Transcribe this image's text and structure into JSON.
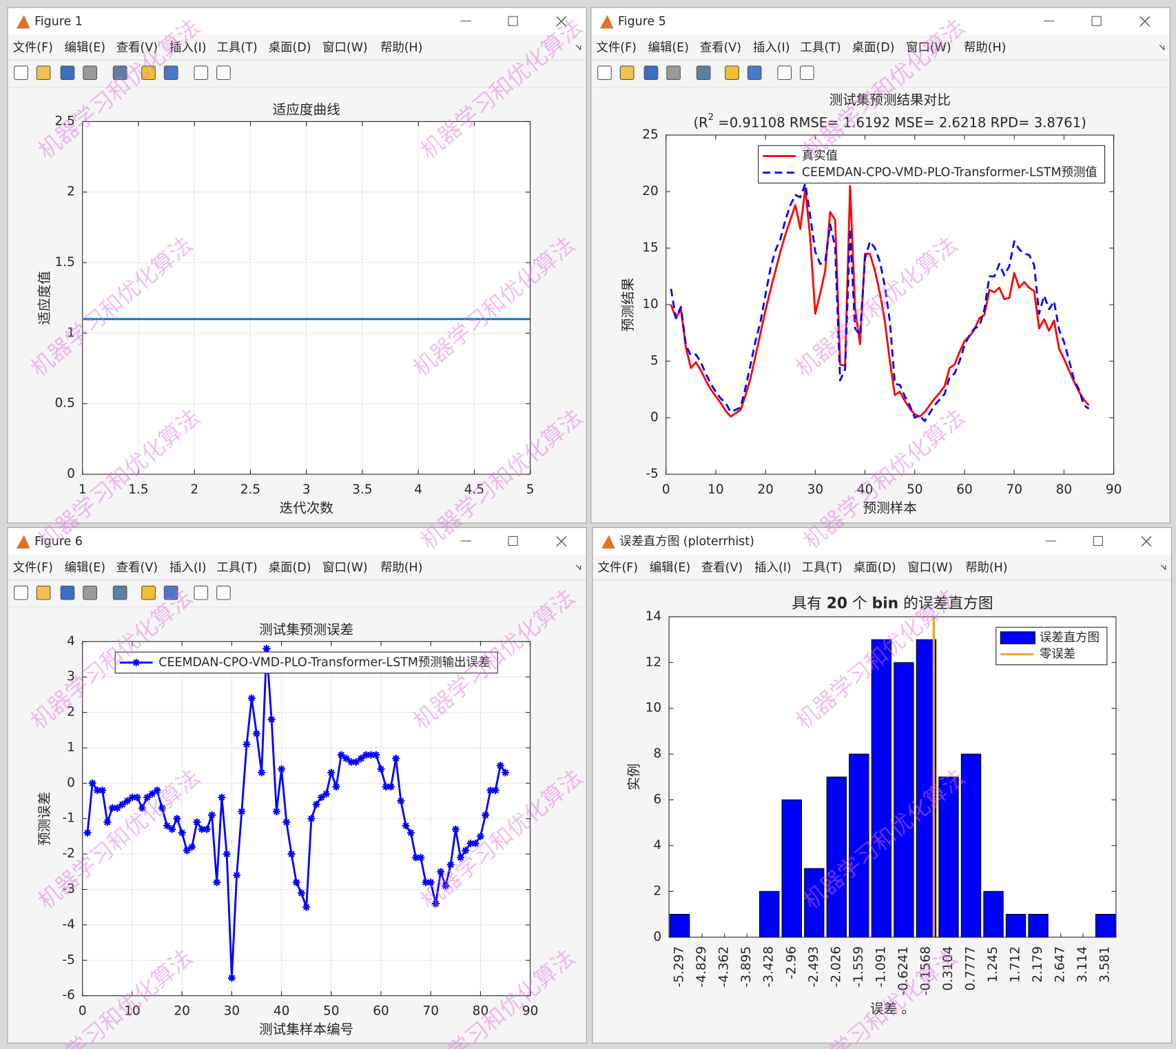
{
  "windows": [
    {
      "title": "Figure 1"
    },
    {
      "title": "Figure 5"
    },
    {
      "title": "Figure 6"
    },
    {
      "title": "误差直方图 (ploterrhist)"
    }
  ],
  "menu": [
    "文件(F)",
    "编辑(E)",
    "查看(V)",
    "插入(I)",
    "工具(T)",
    "桌面(D)",
    "窗口(W)",
    "帮助(H)"
  ],
  "watermark": "机器学习和优化算法",
  "chart_data": [
    {
      "type": "line",
      "title": "适应度曲线",
      "xlabel": "迭代次数",
      "ylabel": "适应度值",
      "x": [
        1,
        2,
        3,
        4,
        5
      ],
      "series": [
        {
          "color": "#0072bd",
          "values": [
            1.1,
            1.1,
            1.1,
            1.1,
            1.1
          ]
        }
      ],
      "xlim": [
        1,
        5
      ],
      "xticks": [
        1,
        1.5,
        2,
        2.5,
        3,
        3.5,
        4,
        4.5,
        5
      ],
      "ylim": [
        0,
        2.5
      ],
      "yticks": [
        0,
        0.5,
        1,
        1.5,
        2,
        2.5
      ],
      "grid": true
    },
    {
      "type": "line",
      "title": "测试集预测结果对比",
      "subtitle": [
        "(R",
        "2",
        " =0.91108 RMSE= 1.6192 MSE= 2.6218 RPD= 3.8761)"
      ],
      "xlabel": "预测样本",
      "ylabel": "预测结果",
      "x": [
        1,
        2,
        3,
        4,
        5,
        6,
        7,
        8,
        9,
        10,
        11,
        12,
        13,
        14,
        15,
        16,
        17,
        18,
        19,
        20,
        21,
        22,
        23,
        24,
        25,
        26,
        27,
        28,
        29,
        30,
        31,
        32,
        33,
        34,
        35,
        36,
        37,
        38,
        39,
        40,
        41,
        42,
        43,
        44,
        45,
        46,
        47,
        48,
        49,
        50,
        51,
        52,
        53,
        54,
        55,
        56,
        57,
        58,
        59,
        60,
        61,
        62,
        63,
        64,
        65,
        66,
        67,
        68,
        69,
        70,
        71,
        72,
        73,
        74,
        75,
        76,
        77,
        78,
        79,
        80,
        81,
        82,
        83,
        84,
        85
      ],
      "series": [
        {
          "name": "真实值",
          "color": "#ff0000",
          "style": "solid",
          "values": [
            10,
            8.8,
            9.6,
            6.2,
            4.4,
            4.9,
            4.2,
            3.3,
            2.5,
            1.9,
            1.3,
            0.6,
            0.1,
            0.4,
            0.7,
            2,
            3.5,
            5.5,
            7.5,
            9.5,
            11.3,
            13,
            14.7,
            16.2,
            17.5,
            18.8,
            16.7,
            20.3,
            15.8,
            9.2,
            11,
            13,
            18.2,
            17.5,
            4.7,
            4.6,
            20.5,
            9.7,
            6.5,
            14.5,
            14.5,
            13,
            11,
            8.5,
            5,
            2,
            2.3,
            1.5,
            0.8,
            0.3,
            0.1,
            0.5,
            1.1,
            1.7,
            2.2,
            2.8,
            4.4,
            4.7,
            5.8,
            6.8,
            7.2,
            7.8,
            8.8,
            9.1,
            11.3,
            11.1,
            11.5,
            10.5,
            10.6,
            12.8,
            11.5,
            12,
            11.5,
            11.2,
            7.9,
            8.7,
            7.7,
            8.6,
            6.1,
            5.2,
            4.2,
            3.2,
            2.3,
            1.6,
            1.1
          ]
        },
        {
          "name": "CEEMDAN-CPO-VMD-PLO-Transformer-LSTM预测值",
          "color": "#0000ff",
          "style": "dashed",
          "values": [
            11.4,
            8.8,
            9.8,
            6.4,
            5.5,
            5.6,
            4.9,
            3.9,
            3,
            2.3,
            1.7,
            1.3,
            0.5,
            0.7,
            0.9,
            2.7,
            4.7,
            6.8,
            8.5,
            10.9,
            13.2,
            14.8,
            15.8,
            17.5,
            18.8,
            19.7,
            19.5,
            20.7,
            17.8,
            14.7,
            13.6,
            13.8,
            17.1,
            15.1,
            3.3,
            4.3,
            16.7,
            7.9,
            7.3,
            14.1,
            15.6,
            15,
            13.8,
            11.6,
            8.5,
            3,
            2.9,
            1.9,
            1.1,
            0,
            0.2,
            -0.3,
            0.4,
            1.1,
            1.6,
            2.1,
            3.6,
            3.9,
            5,
            6.4,
            7.3,
            7.9,
            8.1,
            9.6,
            12.5,
            12.5,
            13.6,
            12.6,
            13.4,
            15.6,
            14.9,
            14.5,
            14.4,
            13.5,
            9.2,
            10.8,
            9.6,
            10.3,
            7.8,
            6.7,
            5.1,
            3.4,
            2.5,
            1.1,
            0.8
          ]
        }
      ],
      "xlim": [
        0,
        90
      ],
      "xticks": [
        0,
        10,
        20,
        30,
        40,
        50,
        60,
        70,
        80,
        90
      ],
      "ylim": [
        -5,
        25
      ],
      "yticks": [
        -5,
        0,
        5,
        10,
        15,
        20,
        25
      ],
      "grid": false,
      "legend": "upper right"
    },
    {
      "type": "line",
      "title": "测试集预测误差",
      "xlabel": "测试集样本编号",
      "ylabel": "预测误差",
      "x": [
        1,
        2,
        3,
        4,
        5,
        6,
        7,
        8,
        9,
        10,
        11,
        12,
        13,
        14,
        15,
        16,
        17,
        18,
        19,
        20,
        21,
        22,
        23,
        24,
        25,
        26,
        27,
        28,
        29,
        30,
        31,
        32,
        33,
        34,
        35,
        36,
        37,
        38,
        39,
        40,
        41,
        42,
        43,
        44,
        45,
        46,
        47,
        48,
        49,
        50,
        51,
        52,
        53,
        54,
        55,
        56,
        57,
        58,
        59,
        60,
        61,
        62,
        63,
        64,
        65,
        66,
        67,
        68,
        69,
        70,
        71,
        72,
        73,
        74,
        75,
        76,
        77,
        78,
        79,
        80,
        81,
        82,
        83,
        84,
        85
      ],
      "series": [
        {
          "name": "CEEMDAN-CPO-VMD-PLO-Transformer-LSTM预测输出误差",
          "color": "#0000ff",
          "style": "solid",
          "marker": "asterisk",
          "values": [
            -1.4,
            0,
            -0.2,
            -0.2,
            -1.1,
            -0.7,
            -0.7,
            -0.6,
            -0.5,
            -0.4,
            -0.4,
            -0.7,
            -0.4,
            -0.3,
            -0.2,
            -0.7,
            -1.2,
            -1.3,
            -1,
            -1.4,
            -1.9,
            -1.8,
            -1.1,
            -1.3,
            -1.3,
            -0.9,
            -2.8,
            -0.4,
            -2,
            -5.5,
            -2.6,
            -0.8,
            1.1,
            2.4,
            1.4,
            0.3,
            3.8,
            1.8,
            -0.8,
            0.4,
            -1.1,
            -2,
            -2.8,
            -3.1,
            -3.5,
            -1,
            -0.6,
            -0.4,
            -0.3,
            0.3,
            -0.1,
            0.8,
            0.7,
            0.6,
            0.6,
            0.7,
            0.8,
            0.8,
            0.8,
            0.4,
            -0.1,
            -0.1,
            0.7,
            -0.5,
            -1.2,
            -1.4,
            -2.1,
            -2.1,
            -2.8,
            -2.8,
            -3.4,
            -2.5,
            -2.9,
            -2.3,
            -1.3,
            -2.1,
            -1.9,
            -1.7,
            -1.7,
            -1.5,
            -0.9,
            -0.2,
            -0.2,
            0.5,
            0.3
          ]
        }
      ],
      "xlim": [
        0,
        90
      ],
      "xticks": [
        0,
        10,
        20,
        30,
        40,
        50,
        60,
        70,
        80,
        90
      ],
      "ylim": [
        -6,
        4
      ],
      "yticks": [
        -6,
        -5,
        -4,
        -3,
        -2,
        -1,
        0,
        1,
        2,
        3,
        4
      ],
      "grid": true,
      "legend": "upper center"
    },
    {
      "type": "histogram",
      "title_parts": [
        "具有 ",
        "20",
        " 个 ",
        "bin",
        " 的误差直方图"
      ],
      "xlabel": "误差 。",
      "ylabel": "实例",
      "x": [
        -5.297,
        -4.829,
        -4.362,
        -3.895,
        -3.428,
        -2.96,
        -2.493,
        -2.026,
        -1.559,
        -1.091,
        -0.6241,
        -0.1568,
        0.3104,
        0.7777,
        1.245,
        1.712,
        2.179,
        2.647,
        3.114,
        3.581
      ],
      "series": [
        {
          "name": "误差直方图",
          "color": "#0000ff",
          "values": [
            1,
            0,
            0,
            0,
            2,
            6,
            3,
            7,
            8,
            13,
            12,
            13,
            7,
            8,
            2,
            1,
            1,
            0,
            0,
            1
          ]
        }
      ],
      "reference_line": {
        "name": "零误差",
        "color": "#f0a020",
        "x": 0
      },
      "xlim": [
        -5.52,
        3.8
      ],
      "ylim": [
        0,
        14
      ],
      "yticks": [
        0,
        2,
        4,
        6,
        8,
        10,
        12,
        14
      ],
      "grid": false,
      "legend": "upper right"
    }
  ]
}
